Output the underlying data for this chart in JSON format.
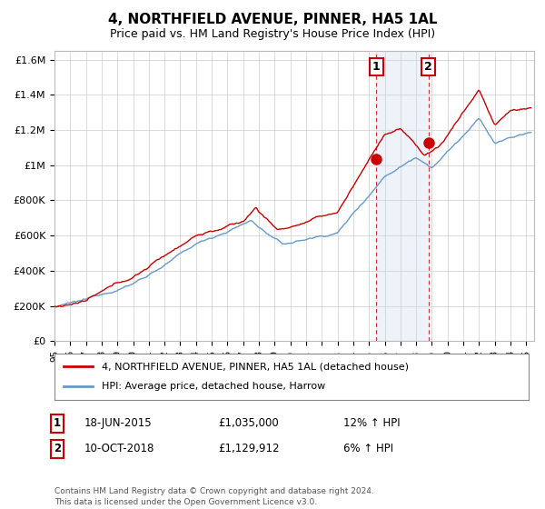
{
  "title": "4, NORTHFIELD AVENUE, PINNER, HA5 1AL",
  "subtitle": "Price paid vs. HM Land Registry's House Price Index (HPI)",
  "legend_line1": "4, NORTHFIELD AVENUE, PINNER, HA5 1AL (detached house)",
  "legend_line2": "HPI: Average price, detached house, Harrow",
  "annotation1_date": "18-JUN-2015",
  "annotation1_price": "£1,035,000",
  "annotation1_hpi": "12% ↑ HPI",
  "annotation2_date": "10-OCT-2018",
  "annotation2_price": "£1,129,912",
  "annotation2_hpi": "6% ↑ HPI",
  "footer": "Contains HM Land Registry data © Crown copyright and database right 2024.\nThis data is licensed under the Open Government Licence v3.0.",
  "price_line_color": "#cc0000",
  "hpi_line_color": "#6699cc",
  "highlight_fill": "#ddeeff",
  "annotation_box_color": "#cc0000",
  "ylim": [
    0,
    1650000
  ],
  "yticks": [
    0,
    200000,
    400000,
    600000,
    800000,
    1000000,
    1200000,
    1400000,
    1600000
  ],
  "ytick_labels": [
    "£0",
    "£200K",
    "£400K",
    "£600K",
    "£800K",
    "£1M",
    "£1.2M",
    "£1.4M",
    "£1.6M"
  ],
  "xlim_start": 1995.0,
  "xlim_end": 2025.5,
  "sale1_x": 2015.46,
  "sale1_y": 1035000,
  "sale2_x": 2018.78,
  "sale2_y": 1129912,
  "highlight_x1": 2015.46,
  "highlight_x2": 2018.78
}
